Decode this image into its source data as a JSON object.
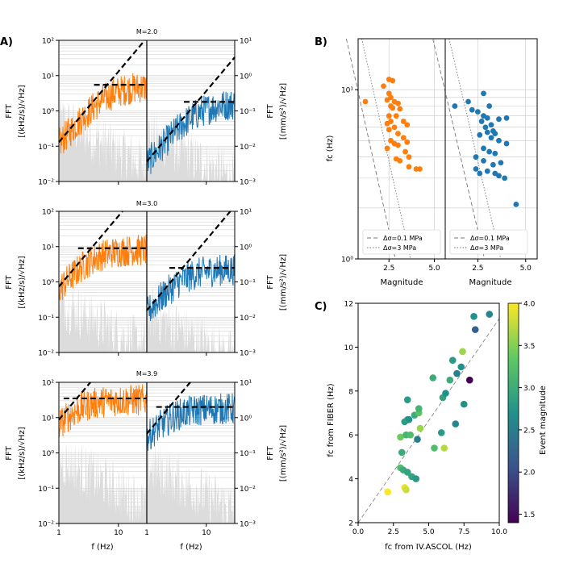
{
  "colors": {
    "fiber": "#ff7f0e",
    "ascol": "#1f77b4",
    "noise": "#dcdcdc",
    "fit": "#000000"
  },
  "chart_data": [
    {
      "type": "line",
      "panel": "A",
      "panel_label": "A)",
      "xlabel": "f (Hz)",
      "left_axis_label": "FFT [(kHz/s)/√Hz]",
      "right_axis_label": "FFT [(mm/s²)/√Hz]",
      "left_label_line1": "FFT",
      "left_label_line2": "[(kHz/s)/√Hz]",
      "right_label_line1": "FFT",
      "right_label_line2": "[(mm/s²)/√Hz]",
      "xlim": [
        1,
        30
      ],
      "x_ticks": [
        "1",
        "10"
      ],
      "left_ylim": [
        0.01,
        100
      ],
      "right_ylim": [
        0.001,
        10
      ],
      "left_y_ticks": [
        "10⁻²",
        "10⁻¹",
        "10⁰",
        "10¹",
        "10²"
      ],
      "right_y_ticks": [
        "10⁻³",
        "10⁻²",
        "10⁻¹",
        "10⁰",
        "10¹"
      ],
      "series": [
        {
          "name": "M=2.0",
          "fiber_plateau": 5.5,
          "fiber_corner_hz": 6.5,
          "ascol_plateau": 0.18,
          "ascol_corner_hz": 7.0
        },
        {
          "name": "M=3.0",
          "fiber_plateau": 9.0,
          "fiber_corner_hz": 3.5,
          "ascol_plateau": 0.25,
          "ascol_corner_hz": 4.0
        },
        {
          "name": "M=3.9",
          "fiber_plateau": 35.0,
          "fiber_corner_hz": 2.0,
          "ascol_plateau": 2.0,
          "ascol_corner_hz": 2.4
        }
      ]
    },
    {
      "type": "scatter",
      "panel": "B",
      "panel_label": "B)",
      "xlabel": "Magnitude",
      "ylabel": "fc (Hz)",
      "xlim": [
        0.8,
        5.6
      ],
      "ylim": [
        1,
        20
      ],
      "x_ticks": [
        "2.5",
        "5.0"
      ],
      "y_ticks": [
        "10⁰",
        "10¹"
      ],
      "legend": [
        "Δσ=0.1 MPa",
        "Δσ=3 MPa"
      ],
      "stress_drops_mpa": [
        0.1,
        3
      ],
      "series": [
        {
          "name": "FIBER",
          "points": [
            [
              1.2,
              8.5
            ],
            [
              2.2,
              10.5
            ],
            [
              2.5,
              11.5
            ],
            [
              2.7,
              11.3
            ],
            [
              2.5,
              9.5
            ],
            [
              2.6,
              9.0
            ],
            [
              2.4,
              8.7
            ],
            [
              2.8,
              8.5
            ],
            [
              3.0,
              8.3
            ],
            [
              2.6,
              8.0
            ],
            [
              2.7,
              7.8
            ],
            [
              3.1,
              7.7
            ],
            [
              2.5,
              7.0
            ],
            [
              2.9,
              7.0
            ],
            [
              2.6,
              6.5
            ],
            [
              3.3,
              6.5
            ],
            [
              2.4,
              6.3
            ],
            [
              2.8,
              6.0
            ],
            [
              3.5,
              6.2
            ],
            [
              2.5,
              5.8
            ],
            [
              3.0,
              5.5
            ],
            [
              2.6,
              5.0
            ],
            [
              3.3,
              5.2
            ],
            [
              3.5,
              4.9
            ],
            [
              2.8,
              4.8
            ],
            [
              3.0,
              4.7
            ],
            [
              2.4,
              4.5
            ],
            [
              3.4,
              4.3
            ],
            [
              3.6,
              4.0
            ],
            [
              2.9,
              3.9
            ],
            [
              3.1,
              3.8
            ],
            [
              3.6,
              3.5
            ],
            [
              4.0,
              3.4
            ],
            [
              4.2,
              3.4
            ]
          ]
        },
        {
          "name": "IV.ASCOL",
          "points": [
            [
              1.3,
              8.0
            ],
            [
              2.0,
              8.5
            ],
            [
              2.8,
              9.5
            ],
            [
              3.1,
              8.0
            ],
            [
              2.2,
              7.6
            ],
            [
              2.5,
              7.4
            ],
            [
              2.8,
              7.0
            ],
            [
              3.0,
              6.8
            ],
            [
              2.7,
              6.5
            ],
            [
              3.2,
              6.2
            ],
            [
              2.9,
              6.0
            ],
            [
              3.3,
              5.7
            ],
            [
              3.0,
              5.6
            ],
            [
              3.4,
              5.5
            ],
            [
              3.6,
              6.7
            ],
            [
              4.0,
              6.8
            ],
            [
              2.6,
              5.4
            ],
            [
              3.2,
              5.2
            ],
            [
              3.6,
              5.0
            ],
            [
              4.0,
              4.8
            ],
            [
              2.8,
              4.5
            ],
            [
              3.1,
              4.3
            ],
            [
              3.4,
              4.2
            ],
            [
              2.4,
              4.0
            ],
            [
              2.8,
              3.8
            ],
            [
              3.3,
              3.6
            ],
            [
              3.7,
              3.7
            ],
            [
              2.4,
              3.4
            ],
            [
              2.6,
              3.2
            ],
            [
              3.0,
              3.3
            ],
            [
              3.4,
              3.2
            ],
            [
              3.6,
              3.1
            ],
            [
              3.9,
              3.0
            ],
            [
              4.5,
              2.1
            ]
          ]
        }
      ]
    },
    {
      "type": "scatter",
      "panel": "C",
      "panel_label": "C)",
      "xlabel": "fc from IV.ASCOL (Hz)",
      "ylabel": "fc from FIBER (Hz)",
      "xlim": [
        0,
        10
      ],
      "ylim": [
        2,
        12
      ],
      "x_ticks": [
        "0.0",
        "2.5",
        "5.0",
        "7.5",
        "10.0"
      ],
      "y_ticks": [
        "2",
        "4",
        "6",
        "8",
        "10",
        "12"
      ],
      "colorbar_label": "Event magnitude",
      "colorbar_range": [
        1.4,
        4.0
      ],
      "colorbar_ticks": [
        "1.5",
        "2.0",
        "2.5",
        "3.0",
        "3.5",
        "4.0"
      ],
      "points": [
        [
          2.1,
          3.4,
          4.0
        ],
        [
          3.3,
          3.6,
          3.9
        ],
        [
          3.4,
          3.5,
          3.8
        ],
        [
          3.0,
          4.5,
          3.2
        ],
        [
          3.2,
          4.4,
          3.0
        ],
        [
          3.5,
          4.3,
          2.9
        ],
        [
          3.8,
          4.1,
          2.9
        ],
        [
          4.1,
          4.0,
          2.8
        ],
        [
          3.1,
          5.2,
          3.0
        ],
        [
          3.0,
          5.9,
          3.4
        ],
        [
          3.4,
          6.0,
          3.1
        ],
        [
          3.7,
          6.0,
          3.2
        ],
        [
          4.2,
          5.8,
          2.5
        ],
        [
          4.4,
          6.3,
          3.6
        ],
        [
          3.3,
          6.6,
          2.8
        ],
        [
          3.5,
          6.7,
          2.9
        ],
        [
          3.6,
          6.7,
          2.7
        ],
        [
          4.0,
          6.9,
          3.0
        ],
        [
          4.3,
          7.0,
          3.3
        ],
        [
          4.3,
          7.2,
          3.1
        ],
        [
          3.5,
          7.6,
          2.8
        ],
        [
          5.4,
          5.4,
          3.2
        ],
        [
          6.1,
          5.4,
          3.7
        ],
        [
          5.9,
          6.1,
          2.8
        ],
        [
          6.9,
          6.5,
          2.6
        ],
        [
          6.0,
          7.7,
          2.9
        ],
        [
          6.2,
          7.9,
          2.7
        ],
        [
          5.3,
          8.6,
          3.0
        ],
        [
          6.5,
          8.5,
          3.0
        ],
        [
          7.0,
          8.8,
          2.5
        ],
        [
          7.5,
          7.4,
          2.7
        ],
        [
          7.9,
          8.5,
          1.4
        ],
        [
          6.7,
          9.4,
          2.8
        ],
        [
          7.3,
          9.1,
          2.7
        ],
        [
          7.4,
          9.8,
          3.6
        ],
        [
          8.3,
          10.8,
          2.2
        ],
        [
          8.2,
          11.4,
          2.7
        ],
        [
          9.3,
          11.5,
          2.6
        ]
      ]
    }
  ]
}
